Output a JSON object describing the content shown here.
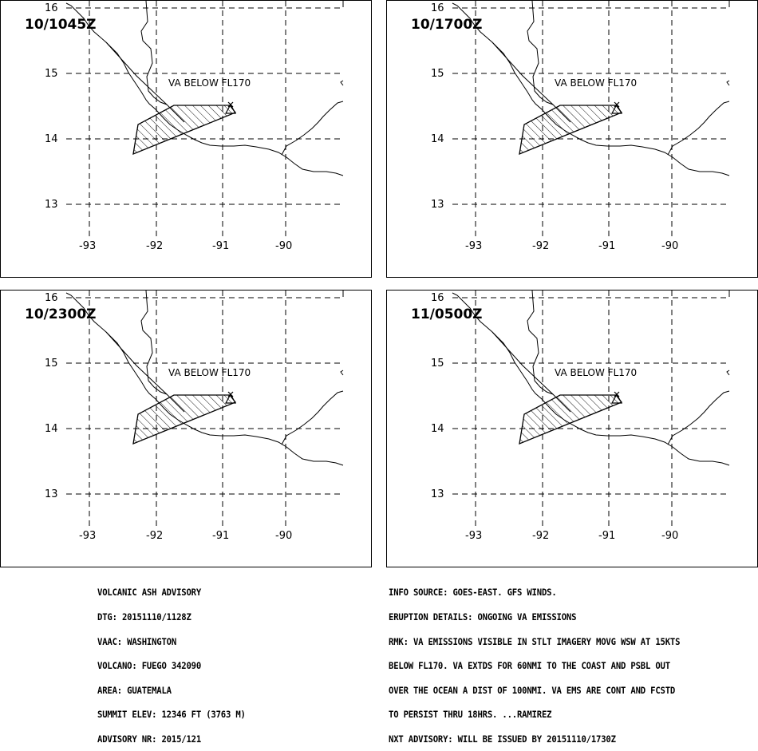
{
  "panels": [
    {
      "valid_time": "10/1045Z"
    },
    {
      "valid_time": "10/1700Z"
    },
    {
      "valid_time": "10/2300Z"
    },
    {
      "valid_time": "11/0500Z"
    }
  ],
  "map": {
    "lat_labels": [
      "16",
      "15",
      "14",
      "13"
    ],
    "lon_labels": [
      "-93",
      "-92",
      "-91",
      "-90"
    ],
    "ash_label": "VA BELOW FL170",
    "volcano_marker": "Δ"
  },
  "advisory_left": [
    "VOLCANIC ASH ADVISORY",
    "DTG: 20151110/1128Z",
    "VAAC: WASHINGTON",
    "VOLCANO: FUEGO 342090",
    "AREA: GUATEMALA",
    "SUMMIT ELEV: 12346 FT (3763 M)",
    "ADVISORY NR: 2015/121"
  ],
  "advisory_right": [
    "INFO SOURCE: GOES-EAST. GFS WINDS.",
    "ERUPTION DETAILS: ONGOING VA EMISSIONS",
    "RMK: VA EMISSIONS VISIBLE IN STLT IMAGERY MOVG WSW AT 15KTS",
    "BELOW FL170. VA EXTDS FOR 60NMI TO THE COAST AND PSBL OUT",
    "OVER THE OCEAN A DIST OF 100NMI. VA EMS ARE CONT AND FCSTD",
    "TO PERSIST THRU 18HRS. ...RAMIREZ",
    "NXT ADVISORY: WILL BE ISSUED BY 20151110/1730Z"
  ]
}
